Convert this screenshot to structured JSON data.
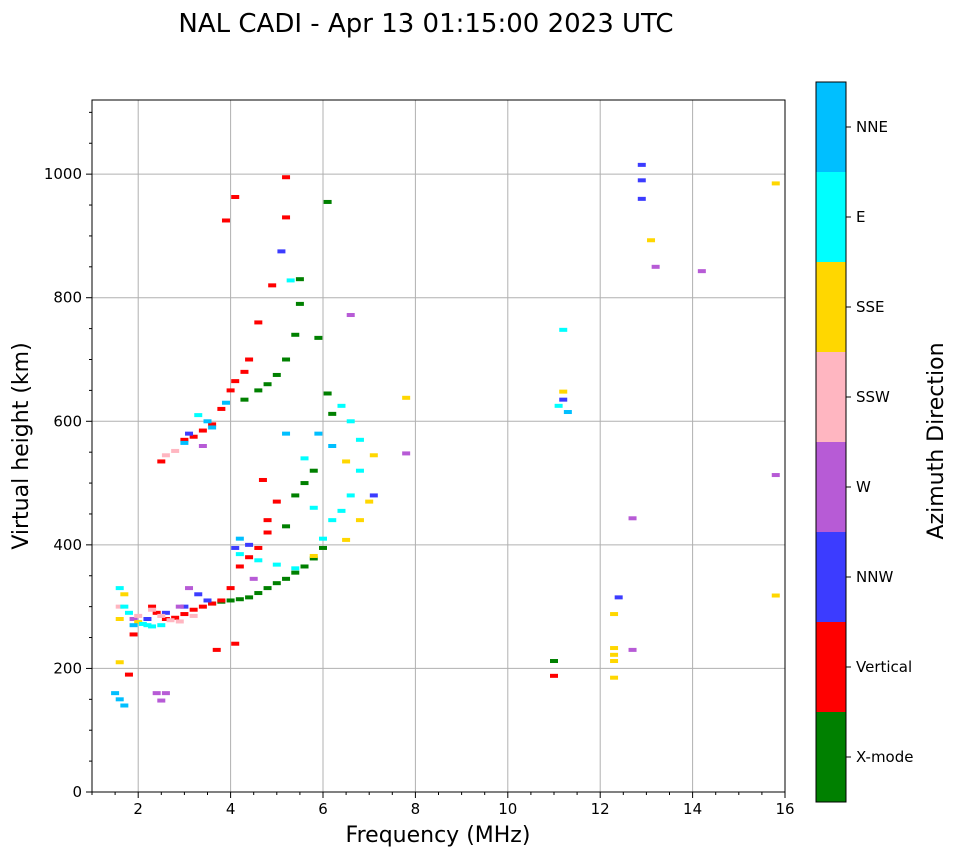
{
  "chart_data": {
    "type": "scatter",
    "title": "NAL CADI - Apr 13 01:15:00 2023 UTC",
    "xlabel": "Frequency (MHz)",
    "ylabel": "Virtual height (km)",
    "xlim": [
      1,
      16
    ],
    "ylim": [
      0,
      1120
    ],
    "xticks": [
      2,
      4,
      6,
      8,
      10,
      12,
      14,
      16
    ],
    "xtick_labels": [
      "2",
      "4",
      "6",
      "8",
      "10",
      "12",
      "14",
      "16"
    ],
    "yticks": [
      0,
      200,
      400,
      600,
      800,
      1000
    ],
    "ytick_labels": [
      "0",
      "200",
      "400",
      "600",
      "800",
      "1000"
    ],
    "grid": true,
    "colorbar": {
      "label": "Azimuth Direction",
      "categories": [
        {
          "name": "X-mode",
          "color": "#008000"
        },
        {
          "name": "Vertical",
          "color": "#ff0000"
        },
        {
          "name": "NNW",
          "color": "#3c3cff"
        },
        {
          "name": "W",
          "color": "#b75bd6"
        },
        {
          "name": "SSW",
          "color": "#ffb6c1"
        },
        {
          "name": "SSE",
          "color": "#ffd700"
        },
        {
          "name": "E",
          "color": "#00ffff"
        },
        {
          "name": "NNE",
          "color": "#00bfff"
        }
      ]
    },
    "series": [
      {
        "name": "X-mode",
        "points": [
          [
            4.0,
            310
          ],
          [
            4.2,
            312
          ],
          [
            4.4,
            315
          ],
          [
            4.6,
            322
          ],
          [
            4.8,
            330
          ],
          [
            5.0,
            338
          ],
          [
            5.2,
            345
          ],
          [
            5.4,
            355
          ],
          [
            5.6,
            365
          ],
          [
            5.8,
            378
          ],
          [
            6.0,
            395
          ],
          [
            4.3,
            635
          ],
          [
            4.6,
            650
          ],
          [
            4.8,
            660
          ],
          [
            5.0,
            675
          ],
          [
            5.2,
            700
          ],
          [
            5.4,
            740
          ],
          [
            5.5,
            790
          ],
          [
            5.5,
            830
          ],
          [
            5.9,
            735
          ],
          [
            6.1,
            645
          ],
          [
            6.2,
            612
          ],
          [
            6.1,
            955
          ],
          [
            5.6,
            500
          ],
          [
            5.8,
            520
          ],
          [
            5.4,
            480
          ],
          [
            5.2,
            430
          ],
          [
            11.0,
            212
          ],
          [
            3.6,
            305
          ],
          [
            3.8,
            308
          ]
        ]
      },
      {
        "name": "Vertical",
        "points": [
          [
            2.4,
            290
          ],
          [
            2.6,
            280
          ],
          [
            2.8,
            282
          ],
          [
            3.0,
            288
          ],
          [
            3.2,
            295
          ],
          [
            3.4,
            300
          ],
          [
            3.6,
            305
          ],
          [
            3.8,
            310
          ],
          [
            4.0,
            330
          ],
          [
            4.2,
            365
          ],
          [
            4.4,
            380
          ],
          [
            4.6,
            395
          ],
          [
            4.8,
            420
          ],
          [
            3.0,
            570
          ],
          [
            3.2,
            575
          ],
          [
            3.4,
            585
          ],
          [
            3.6,
            595
          ],
          [
            3.8,
            620
          ],
          [
            4.0,
            650
          ],
          [
            4.1,
            665
          ],
          [
            4.3,
            680
          ],
          [
            4.4,
            700
          ],
          [
            4.6,
            760
          ],
          [
            4.9,
            820
          ],
          [
            3.9,
            925
          ],
          [
            4.1,
            963
          ],
          [
            5.2,
            995
          ],
          [
            5.2,
            930
          ],
          [
            5.0,
            470
          ],
          [
            4.8,
            440
          ],
          [
            4.7,
            505
          ],
          [
            2.5,
            535
          ],
          [
            2.3,
            300
          ],
          [
            1.9,
            255
          ],
          [
            1.8,
            190
          ],
          [
            11.0,
            188
          ],
          [
            4.1,
            240
          ],
          [
            3.7,
            230
          ]
        ]
      },
      {
        "name": "NNW",
        "points": [
          [
            2.6,
            290
          ],
          [
            3.0,
            300
          ],
          [
            3.3,
            320
          ],
          [
            4.1,
            395
          ],
          [
            3.1,
            580
          ],
          [
            12.9,
            990
          ],
          [
            12.9,
            1015
          ],
          [
            12.9,
            960
          ],
          [
            12.4,
            315
          ],
          [
            5.1,
            875
          ],
          [
            7.1,
            480
          ],
          [
            2.2,
            280
          ],
          [
            3.5,
            310
          ],
          [
            11.2,
            635
          ],
          [
            4.4,
            400
          ]
        ]
      },
      {
        "name": "W",
        "points": [
          [
            2.9,
            300
          ],
          [
            3.1,
            330
          ],
          [
            2.4,
            160
          ],
          [
            2.6,
            160
          ],
          [
            2.5,
            148
          ],
          [
            6.6,
            772
          ],
          [
            7.8,
            548
          ],
          [
            12.7,
            443
          ],
          [
            12.7,
            230
          ],
          [
            13.2,
            850
          ],
          [
            14.2,
            843
          ],
          [
            15.8,
            513
          ],
          [
            3.4,
            560
          ],
          [
            1.9,
            280
          ],
          [
            4.5,
            345
          ]
        ]
      },
      {
        "name": "SSW",
        "points": [
          [
            2.3,
            295
          ],
          [
            2.5,
            285
          ],
          [
            2.7,
            278
          ],
          [
            2.9,
            276
          ],
          [
            3.2,
            285
          ],
          [
            2.6,
            545
          ],
          [
            2.8,
            552
          ],
          [
            1.6,
            300
          ],
          [
            2.0,
            285
          ]
        ]
      },
      {
        "name": "SSE",
        "points": [
          [
            1.6,
            210
          ],
          [
            1.6,
            280
          ],
          [
            1.7,
            320
          ],
          [
            6.5,
            408
          ],
          [
            6.5,
            535
          ],
          [
            6.8,
            440
          ],
          [
            7.0,
            470
          ],
          [
            7.1,
            545
          ],
          [
            7.8,
            638
          ],
          [
            11.2,
            648
          ],
          [
            12.3,
            288
          ],
          [
            12.3,
            233
          ],
          [
            12.3,
            222
          ],
          [
            12.3,
            212
          ],
          [
            12.3,
            185
          ],
          [
            13.1,
            893
          ],
          [
            15.8,
            985
          ],
          [
            15.8,
            318
          ],
          [
            5.8,
            382
          ],
          [
            2.0,
            275
          ]
        ]
      },
      {
        "name": "E",
        "points": [
          [
            1.6,
            330
          ],
          [
            1.7,
            300
          ],
          [
            1.8,
            290
          ],
          [
            2.1,
            272
          ],
          [
            2.3,
            268
          ],
          [
            2.5,
            270
          ],
          [
            4.2,
            385
          ],
          [
            4.6,
            375
          ],
          [
            5.0,
            368
          ],
          [
            5.4,
            362
          ],
          [
            6.0,
            410
          ],
          [
            6.2,
            440
          ],
          [
            6.4,
            455
          ],
          [
            6.6,
            480
          ],
          [
            6.8,
            520
          ],
          [
            6.4,
            625
          ],
          [
            6.6,
            600
          ],
          [
            6.8,
            570
          ],
          [
            5.8,
            460
          ],
          [
            5.6,
            540
          ],
          [
            11.2,
            748
          ],
          [
            11.1,
            625
          ],
          [
            5.3,
            828
          ],
          [
            3.3,
            610
          ],
          [
            2.2,
            270
          ]
        ]
      },
      {
        "name": "NNE",
        "points": [
          [
            1.6,
            150
          ],
          [
            1.5,
            160
          ],
          [
            1.7,
            140
          ],
          [
            3.6,
            590
          ],
          [
            3.9,
            630
          ],
          [
            5.2,
            580
          ],
          [
            5.9,
            580
          ],
          [
            6.2,
            560
          ],
          [
            4.2,
            410
          ],
          [
            3.0,
            565
          ],
          [
            11.3,
            615
          ],
          [
            3.5,
            600
          ],
          [
            1.9,
            270
          ]
        ]
      }
    ]
  }
}
